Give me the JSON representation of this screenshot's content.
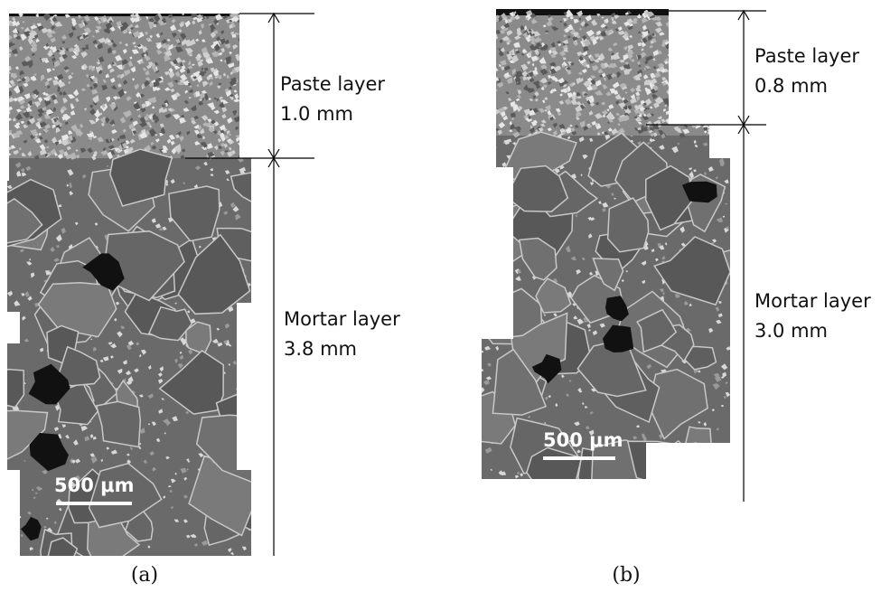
{
  "panels": [
    {
      "caption": "(a)",
      "layers": [
        {
          "name": "Paste layer",
          "thickness": "1.0 mm"
        },
        {
          "name": "Mortar layer",
          "thickness": "3.8 mm"
        }
      ],
      "scale_bar": "500 μm"
    },
    {
      "caption": "(b)",
      "layers": [
        {
          "name": "Paste layer",
          "thickness": "0.8 mm"
        },
        {
          "name": "Mortar layer",
          "thickness": "3.0 mm"
        }
      ],
      "scale_bar": "500 μm"
    }
  ]
}
